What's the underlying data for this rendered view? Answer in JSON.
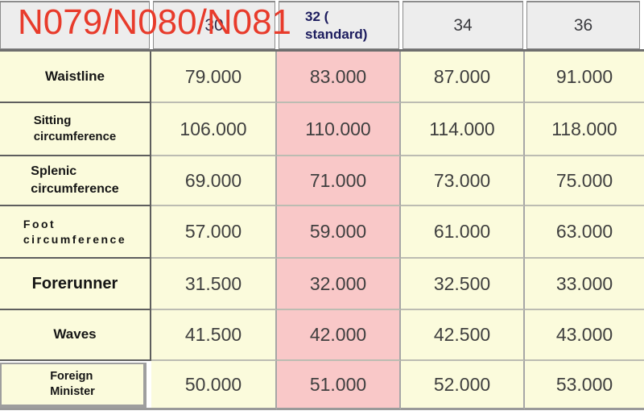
{
  "overlay": {
    "text": "N079/N080/N081",
    "color": "#e83b2b"
  },
  "table": {
    "columns": [
      {
        "label": ""
      },
      {
        "label": "30"
      },
      {
        "label": "32 (\nstandard)",
        "highlighted": true
      },
      {
        "label": "34"
      },
      {
        "label": "36"
      }
    ],
    "rows": [
      {
        "label": "Waistline",
        "values": [
          "79.000",
          "83.000",
          "87.000",
          "91.000"
        ]
      },
      {
        "label": "Sitting\ncircumference",
        "values": [
          "106.000",
          "110.000",
          "114.000",
          "118.000"
        ]
      },
      {
        "label": "Splenic\ncircumference",
        "values": [
          "69.000",
          "71.000",
          "73.000",
          "75.000"
        ]
      },
      {
        "label": "Foot\ncircumference",
        "values": [
          "57.000",
          "59.000",
          "61.000",
          "63.000"
        ]
      },
      {
        "label": "Forerunner",
        "values": [
          "31.500",
          "32.000",
          "32.500",
          "33.000"
        ]
      },
      {
        "label": "Waves",
        "values": [
          "41.500",
          "42.000",
          "42.500",
          "43.000"
        ]
      },
      {
        "label": "Foreign\nMinister",
        "values": [
          "50.000",
          "51.000",
          "52.000",
          "53.000"
        ]
      }
    ]
  },
  "colors": {
    "header_bg": "#ededed",
    "cell_bg": "#fbfbdc",
    "highlight_col_bg": "#f9c8c8",
    "overlay_red": "#e83b2b",
    "standard_header_text": "#1c1c5e",
    "value_text": "#3f3f3f",
    "dark_border": "#5e5e5e",
    "light_border": "#bcbcb2"
  },
  "chart_data": {
    "type": "table",
    "title": "N079/N080/N081",
    "columns": [
      "",
      "30",
      "32 (standard)",
      "34",
      "36"
    ],
    "highlighted_column": "32 (standard)",
    "rows": [
      {
        "label": "Waistline",
        "values": [
          79.0,
          83.0,
          87.0,
          91.0
        ]
      },
      {
        "label": "Sitting circumference",
        "values": [
          106.0,
          110.0,
          114.0,
          118.0
        ]
      },
      {
        "label": "Splenic circumference",
        "values": [
          69.0,
          71.0,
          73.0,
          75.0
        ]
      },
      {
        "label": "Foot circumference",
        "values": [
          57.0,
          59.0,
          61.0,
          63.0
        ]
      },
      {
        "label": "Forerunner",
        "values": [
          31.5,
          32.0,
          32.5,
          33.0
        ]
      },
      {
        "label": "Waves",
        "values": [
          41.5,
          42.0,
          42.5,
          43.0
        ]
      },
      {
        "label": "Foreign Minister",
        "values": [
          50.0,
          51.0,
          52.0,
          53.0
        ]
      }
    ]
  }
}
